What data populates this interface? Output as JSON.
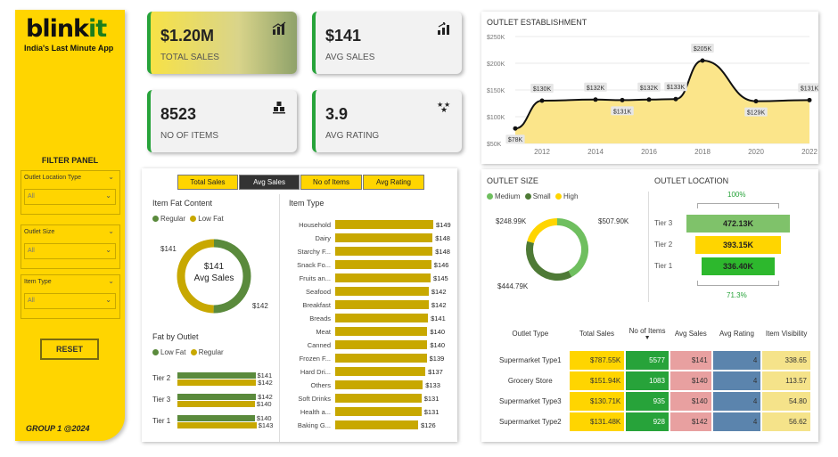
{
  "brand": {
    "name_main": "blink",
    "name_accent": "it",
    "tagline": "India's Last Minute App"
  },
  "sidebar": {
    "filter_title": "FILTER PANEL",
    "filters": [
      {
        "label": "Outlet Location Type",
        "value": "All"
      },
      {
        "label": "Outlet Size",
        "value": "All"
      },
      {
        "label": "Item Type",
        "value": "All"
      }
    ],
    "reset_label": "RESET",
    "footer": "GROUP 1 @2024"
  },
  "kpis": [
    {
      "value": "$1.20M",
      "label": "TOTAL SALES",
      "icon": "bar-chart-icon"
    },
    {
      "value": "$141",
      "label": "AVG SALES",
      "icon": "growth-chart-icon"
    },
    {
      "value": "8523",
      "label": "NO OF ITEMS",
      "icon": "boxes-icon"
    },
    {
      "value": "3.9",
      "label": "AVG RATING",
      "icon": "stars-icon"
    }
  ],
  "tabs": [
    {
      "label": "Total Sales",
      "active": false
    },
    {
      "label": "Avg Sales",
      "active": true
    },
    {
      "label": "No of Items",
      "active": false
    },
    {
      "label": "Avg Rating",
      "active": false
    }
  ],
  "colors": {
    "yellow": "#ffd500",
    "green": "#27a33a",
    "mustard": "#c8a800",
    "olive": "#5a8a3c",
    "dark_green": "#4e7a36",
    "pink": "#e8a0a0",
    "steel_blue": "#5b84ad",
    "light_yellow": "#f5e38a"
  },
  "item_fat": {
    "title": "Item Fat Content",
    "legend": [
      "Regular",
      "Low Fat"
    ],
    "center_value": "$141",
    "center_label": "Avg Sales",
    "low_fat_label": "$141",
    "regular_label": "$142",
    "chart_data": {
      "type": "pie",
      "categories": [
        "Regular",
        "Low Fat"
      ],
      "values": [
        142,
        141
      ]
    }
  },
  "fat_by_outlet": {
    "title": "Fat by Outlet",
    "legend": [
      "Low Fat",
      "Regular"
    ],
    "chart_data": {
      "type": "bar",
      "categories": [
        "Tier 2",
        "Tier 3",
        "Tier 1"
      ],
      "series": [
        {
          "name": "Low Fat",
          "values": [
            141,
            142,
            140
          ],
          "labels": [
            "$141",
            "$142",
            "$140"
          ]
        },
        {
          "name": "Regular",
          "values": [
            142,
            140,
            143
          ],
          "labels": [
            "$142",
            "$140",
            "$143"
          ]
        }
      ]
    }
  },
  "item_type": {
    "title": "Item Type",
    "chart_data": {
      "type": "bar",
      "categories": [
        "Household",
        "Dairy",
        "Starchy F...",
        "Snack Fo...",
        "Fruits an...",
        "Seafood",
        "Breakfast",
        "Breads",
        "Meat",
        "Canned",
        "Frozen F...",
        "Hard Dri...",
        "Others",
        "Soft Drinks",
        "Health a...",
        "Baking G..."
      ],
      "values": [
        149,
        148,
        148,
        146,
        145,
        142,
        142,
        141,
        140,
        140,
        139,
        137,
        133,
        131,
        131,
        126
      ],
      "labels": [
        "$149",
        "$148",
        "$148",
        "$146",
        "$145",
        "$142",
        "$142",
        "$141",
        "$140",
        "$140",
        "$139",
        "$137",
        "$133",
        "$131",
        "$131",
        "$126"
      ]
    }
  },
  "outlet_establishment": {
    "title": "OUTLET ESTABLISHMENT",
    "chart_data": {
      "type": "area",
      "x": [
        2011,
        2012,
        2014,
        2015,
        2016,
        2017,
        2018,
        2020,
        2022
      ],
      "values": [
        78,
        130,
        132,
        131,
        132,
        133,
        205,
        129,
        131
      ],
      "labels": [
        "$78K",
        "$130K",
        "$132K",
        "$131K",
        "$132K",
        "$133K",
        "$205K",
        "$129K",
        "$131K"
      ],
      "ylim": [
        50,
        250
      ],
      "yticks": [
        "$250K",
        "$200K",
        "$150K",
        "$100K",
        "$50K"
      ],
      "xticks": [
        "2012",
        "2014",
        "2016",
        "2018",
        "2020",
        "2022"
      ]
    }
  },
  "outlet_size": {
    "title": "OUTLET SIZE",
    "legend": [
      "Medium",
      "Small",
      "High"
    ],
    "chart_data": {
      "type": "pie",
      "categories": [
        "Medium",
        "Small",
        "High"
      ],
      "values": [
        507.9,
        444.79,
        248.99
      ],
      "labels": [
        "$507.90K",
        "$444.79K",
        "$248.99K"
      ]
    }
  },
  "outlet_location": {
    "title": "OUTLET LOCATION",
    "top_pct": "100%",
    "bottom_pct": "71.3%",
    "chart_data": {
      "type": "bar",
      "categories": [
        "Tier 3",
        "Tier 2",
        "Tier 1"
      ],
      "values": [
        472.13,
        393.15,
        336.4
      ],
      "labels": [
        "472.13K",
        "393.15K",
        "336.40K"
      ]
    }
  },
  "outlet_table": {
    "headers": [
      "Outlet Type",
      "Total Sales",
      "No of Items",
      "Avg Sales",
      "Avg Rating",
      "Item Visibility"
    ],
    "rows": [
      [
        "Supermarket Type1",
        "$787.55K",
        "5577",
        "$141",
        "4",
        "338.65"
      ],
      [
        "Grocery Store",
        "$151.94K",
        "1083",
        "$140",
        "4",
        "113.57"
      ],
      [
        "Supermarket Type3",
        "$130.71K",
        "935",
        "$140",
        "4",
        "54.80"
      ],
      [
        "Supermarket Type2",
        "$131.48K",
        "928",
        "$142",
        "4",
        "56.62"
      ]
    ]
  }
}
